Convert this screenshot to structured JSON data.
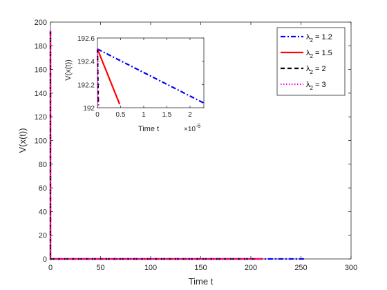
{
  "chart_data": [
    {
      "type": "line",
      "title": "",
      "xlabel": "Time t",
      "ylabel": "V(x(t))",
      "xlim": [
        0,
        300
      ],
      "ylim": [
        0,
        200
      ],
      "xticks": [
        0,
        50,
        100,
        150,
        200,
        250,
        300
      ],
      "yticks": [
        0,
        20,
        40,
        60,
        80,
        100,
        120,
        140,
        160,
        180,
        200
      ],
      "grid": false,
      "legend_position": "top-right",
      "series": [
        {
          "name_prefix": "λ",
          "name_sub": "2",
          "name_suffix": " = 1.2",
          "color": "#0000ff",
          "dash": "dashdot",
          "x": [
            0,
            1e-07,
            255
          ],
          "y": [
            192.5,
            0,
            0
          ]
        },
        {
          "name_prefix": "λ",
          "name_sub": "2",
          "name_suffix": " = 1.5",
          "color": "#ff0000",
          "dash": "solid",
          "x": [
            0,
            1e-07,
            212
          ],
          "y": [
            192.5,
            0,
            0
          ]
        },
        {
          "name_prefix": "λ",
          "name_sub": "2",
          "name_suffix": " = 2",
          "color": "#000000",
          "dash": "dashed",
          "x": [
            0,
            1e-07,
            205
          ],
          "y": [
            192.5,
            0,
            0
          ]
        },
        {
          "name_prefix": "λ",
          "name_sub": "2",
          "name_suffix": " = 3",
          "color": "#ff00ff",
          "dash": "dotted",
          "x": [
            0,
            1e-07,
            210
          ],
          "y": [
            192.5,
            0,
            0
          ]
        }
      ]
    },
    {
      "type": "line",
      "title": "",
      "xlabel": "Time t",
      "ylabel": "V(x(t))",
      "xlim": [
        0,
        2.3
      ],
      "ylim": [
        192,
        192.6
      ],
      "xticks": [
        0,
        0.5,
        1,
        1.5,
        2
      ],
      "xticklabels": [
        "0",
        "0.5",
        "1",
        "1.5",
        "2"
      ],
      "yticks": [
        192,
        192.2,
        192.4,
        192.6
      ],
      "yticklabels": [
        "192",
        "192.2",
        "192.4",
        "192.6"
      ],
      "x_exponent_base": "×10",
      "x_exponent_power": "-6",
      "grid": false,
      "series": [
        {
          "color": "#0000ff",
          "dash": "dashdot",
          "x": [
            0,
            2.3
          ],
          "y": [
            192.505,
            192.04
          ]
        },
        {
          "color": "#ff0000",
          "dash": "solid",
          "x": [
            0,
            0.48
          ],
          "y": [
            192.505,
            192.03
          ]
        },
        {
          "color": "#000000",
          "dash": "dashed",
          "x": [
            0,
            0.02
          ],
          "y": [
            192.505,
            192.02
          ]
        },
        {
          "color": "#ff00ff",
          "dash": "dotted",
          "x": [
            0,
            0.01
          ],
          "y": [
            192.505,
            192.02
          ]
        }
      ]
    }
  ]
}
